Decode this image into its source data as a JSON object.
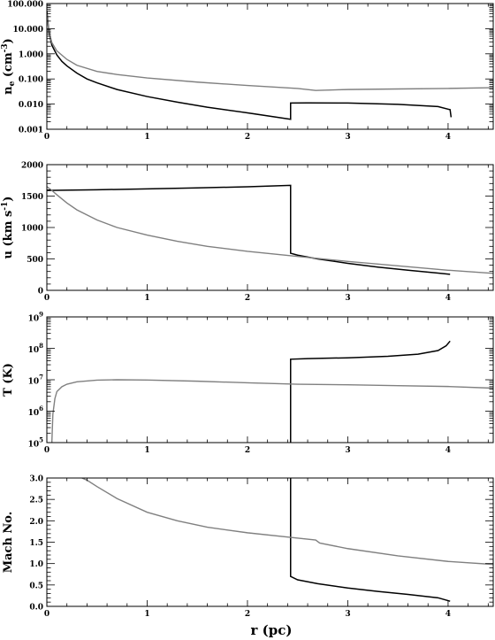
{
  "xlabel": "r (pc)",
  "colors": {
    "series_1": "#000000",
    "series_2": "#808080"
  },
  "chart_data": [
    {
      "type": "line",
      "ylabel_main": "n",
      "ylabel_sub": "e",
      "ylabel_paren": "(cm",
      "ylabel_sup": "-3",
      "ylabel_close": ")",
      "yscale": "log",
      "xlim": [
        0,
        4.45
      ],
      "ylim": [
        0.001,
        100
      ],
      "xticks": [
        0,
        1,
        2,
        3,
        4
      ],
      "xtick_labels": [
        "0",
        "1",
        "2",
        "3",
        "4"
      ],
      "yticks": [
        0.001,
        0.01,
        0.1,
        1,
        10,
        100
      ],
      "ytick_labels": [
        "0.001",
        "0.010",
        "0.100",
        "1.000",
        "10.000",
        "100.000"
      ],
      "series": [
        {
          "color": "black",
          "x": [
            0.0,
            0.02,
            0.05,
            0.1,
            0.15,
            0.2,
            0.3,
            0.4,
            0.5,
            0.7,
            1.0,
            1.3,
            1.6,
            2.0,
            2.43,
            2.43,
            2.6,
            3.0,
            3.5,
            3.9,
            4.02,
            4.03
          ],
          "y": [
            50,
            8,
            2.2,
            0.9,
            0.5,
            0.33,
            0.17,
            0.1,
            0.07,
            0.038,
            0.02,
            0.012,
            0.0075,
            0.0045,
            0.0025,
            0.011,
            0.0112,
            0.011,
            0.0098,
            0.008,
            0.006,
            0.003
          ]
        },
        {
          "color": "gray",
          "x": [
            0.0,
            0.02,
            0.05,
            0.1,
            0.2,
            0.3,
            0.5,
            0.7,
            1.0,
            1.5,
            2.0,
            2.5,
            2.68,
            3.0,
            3.5,
            4.0,
            4.45
          ],
          "y": [
            40,
            8,
            2.8,
            1.3,
            0.6,
            0.35,
            0.2,
            0.15,
            0.11,
            0.075,
            0.055,
            0.042,
            0.035,
            0.038,
            0.04,
            0.042,
            0.045
          ]
        }
      ]
    },
    {
      "type": "line",
      "ylabel_main": "u",
      "ylabel_paren": "(km s",
      "ylabel_sup": "-1",
      "ylabel_close": ")",
      "yscale": "linear",
      "xlim": [
        0,
        4.45
      ],
      "ylim": [
        0,
        2000
      ],
      "xticks": [
        0,
        1,
        2,
        3,
        4
      ],
      "xtick_labels": [
        "0",
        "1",
        "2",
        "3",
        "4"
      ],
      "yticks": [
        0,
        500,
        1000,
        1500,
        2000
      ],
      "ytick_labels": [
        "0",
        "500",
        "1000",
        "1500",
        "2000"
      ],
      "series": [
        {
          "color": "black",
          "x": [
            0.0,
            0.5,
            1.0,
            1.5,
            2.0,
            2.43,
            2.43,
            2.5,
            2.7,
            3.0,
            3.3,
            3.6,
            3.9,
            4.02
          ],
          "y": [
            1590,
            1600,
            1615,
            1630,
            1648,
            1670,
            590,
            560,
            500,
            430,
            370,
            320,
            275,
            255
          ]
        },
        {
          "color": "gray",
          "x": [
            0.0,
            0.05,
            0.1,
            0.2,
            0.3,
            0.5,
            0.7,
            1.0,
            1.3,
            1.6,
            2.0,
            2.5,
            3.0,
            3.5,
            4.0,
            4.45
          ],
          "y": [
            1650,
            1590,
            1520,
            1390,
            1280,
            1120,
            1000,
            880,
            780,
            700,
            620,
            540,
            460,
            390,
            320,
            270
          ]
        }
      ]
    },
    {
      "type": "line",
      "ylabel_main": "T",
      "ylabel_paren": "(K)",
      "yscale": "log",
      "xlim": [
        0,
        4.45
      ],
      "ylim": [
        100000,
        1000000000
      ],
      "xticks": [
        0,
        1,
        2,
        3,
        4
      ],
      "xtick_labels": [
        "0",
        "1",
        "2",
        "3",
        "4"
      ],
      "yticks": [
        100000,
        1000000,
        10000000,
        100000000,
        1000000000
      ],
      "ytick_base": "10",
      "ytick_exps": [
        "5",
        "6",
        "7",
        "8",
        "9"
      ],
      "series": [
        {
          "color": "black",
          "x": [
            2.43,
            2.43,
            2.6,
            3.0,
            3.4,
            3.7,
            3.9,
            3.98,
            4.02
          ],
          "y": [
            100000,
            45000000,
            47000000,
            50000000,
            56000000,
            65000000,
            85000000,
            120000000,
            170000000
          ]
        },
        {
          "color": "gray",
          "x": [
            0.05,
            0.06,
            0.08,
            0.1,
            0.15,
            0.2,
            0.3,
            0.5,
            0.7,
            1.0,
            1.5,
            2.0,
            2.5,
            3.0,
            3.5,
            4.0,
            4.45
          ],
          "y": [
            100000,
            800000,
            2500000,
            4200000,
            6000000,
            7200000,
            8600000,
            9700000,
            10000000,
            9800000,
            9000000,
            8000000,
            7200000,
            6900000,
            6500000,
            6100000,
            5400000
          ]
        }
      ]
    },
    {
      "type": "line",
      "ylabel_main": "Mach No.",
      "yscale": "linear",
      "xlim": [
        0,
        4.45
      ],
      "ylim": [
        0,
        3.0
      ],
      "xticks": [
        0,
        1,
        2,
        3,
        4
      ],
      "xtick_labels": [
        "0",
        "1",
        "2",
        "3",
        "4"
      ],
      "yticks": [
        0,
        0.5,
        1.0,
        1.5,
        2.0,
        2.5,
        3.0
      ],
      "ytick_labels": [
        "0.0",
        "0.5",
        "1.0",
        "1.5",
        "2.0",
        "2.5",
        "3.0"
      ],
      "series": [
        {
          "color": "black",
          "x": [
            2.43,
            2.43,
            2.5,
            2.7,
            3.0,
            3.3,
            3.6,
            3.9,
            4.02
          ],
          "y": [
            3.0,
            0.7,
            0.62,
            0.53,
            0.43,
            0.35,
            0.28,
            0.2,
            0.12
          ]
        },
        {
          "color": "gray",
          "x": [
            0.35,
            0.4,
            0.5,
            0.7,
            1.0,
            1.3,
            1.6,
            2.0,
            2.4,
            2.68,
            2.72,
            3.0,
            3.5,
            4.0,
            4.45
          ],
          "y": [
            3.0,
            2.95,
            2.8,
            2.52,
            2.2,
            2.0,
            1.85,
            1.72,
            1.62,
            1.55,
            1.48,
            1.35,
            1.18,
            1.05,
            0.98
          ]
        }
      ]
    }
  ]
}
